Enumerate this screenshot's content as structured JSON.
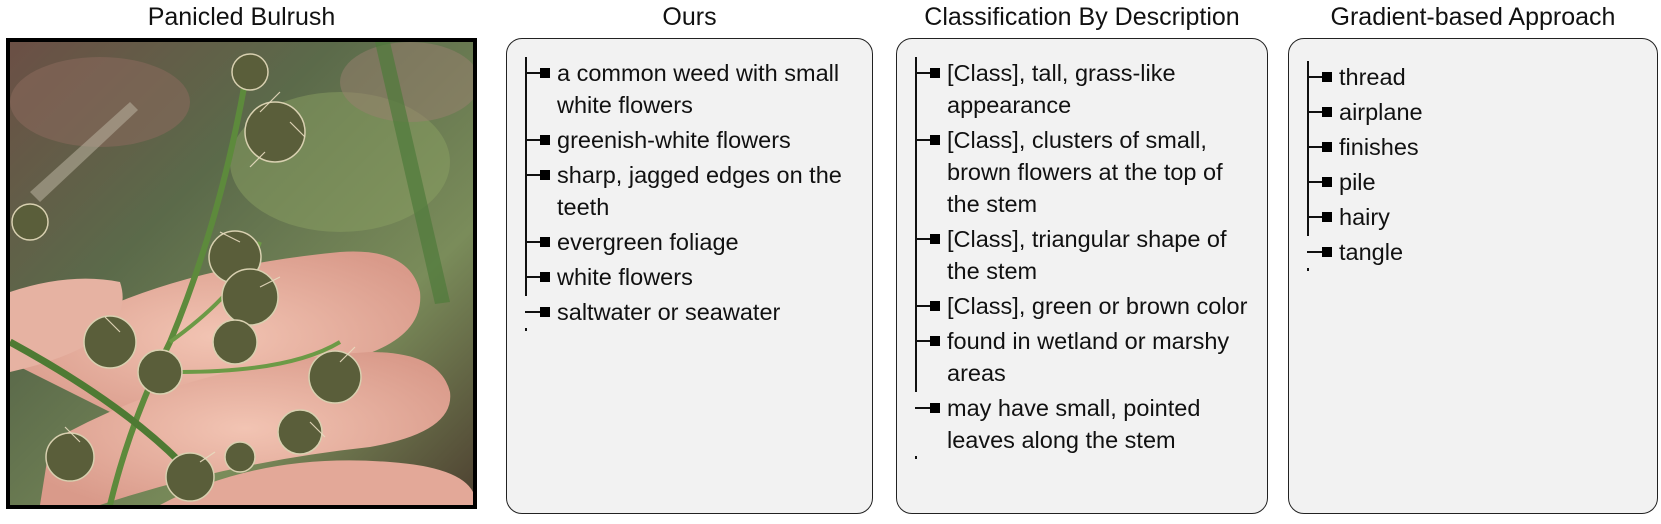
{
  "image_panel": {
    "title": "Panicled Bulrush",
    "icon": "plant-photo"
  },
  "panels": [
    {
      "title": "Ours",
      "items": [
        "a common weed with small white flowers",
        "greenish-white flowers",
        "sharp, jagged edges on the teeth",
        "evergreen foliage",
        "white flowers",
        "saltwater or seawater"
      ]
    },
    {
      "title": "Classification By Description",
      "items": [
        "[Class], tall, grass-like appearance",
        "[Class], clusters of small, brown flowers at the top of the stem",
        "[Class], triangular shape of the stem",
        "[Class], green or brown color",
        "found in wetland or marshy areas",
        "may have small, pointed leaves along the stem"
      ]
    },
    {
      "title": "Gradient-based Approach",
      "items": [
        "thread",
        "airplane",
        "finishes",
        "pile",
        "hairy",
        "tangle"
      ]
    }
  ],
  "colors": {
    "panel_bg": "#f2f2f2",
    "panel_border": "#222222",
    "bullet": "#000000"
  }
}
